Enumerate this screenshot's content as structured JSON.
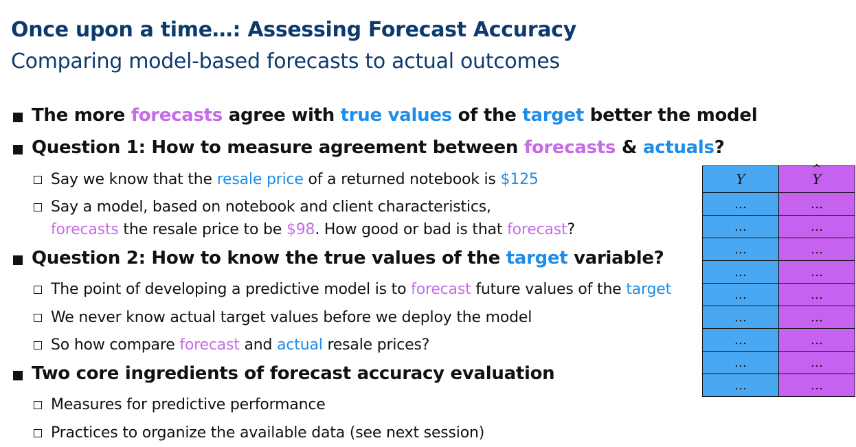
{
  "title": "Once upon a time…: Assessing Forecast Accuracy",
  "subtitle": "Comparing model-based forecasts to actual outcomes",
  "bullets": {
    "b1": {
      "p1": "The more ",
      "p2": "forecasts",
      "p3": " agree with ",
      "p4": "true values",
      "p5": " of the ",
      "p6": "target",
      "p7": " better the model"
    },
    "b2": {
      "p1": "Question 1: How to measure agreement between ",
      "p2": "forecasts",
      "p3": " & ",
      "p4": "actuals",
      "p5": "?"
    },
    "b2_1": {
      "p1": "Say we know that the ",
      "p2": "resale price",
      "p3": " of a returned notebook is ",
      "p4": "$125"
    },
    "b2_2": {
      "line1": "Say a model, based on notebook and client characteristics,",
      "p1": "forecasts",
      "p2": " the resale price to be ",
      "p3": "$98",
      "p4": ". How good or bad is that ",
      "p5": "forecast",
      "p6": "?"
    },
    "b3": {
      "p1": "Question 2: How to know the true values of the ",
      "p2": "target",
      "p3": " variable?"
    },
    "b3_1": {
      "p1": "The point of developing a predictive model is to ",
      "p2": "forecast",
      "p3": " future values of the ",
      "p4": "target"
    },
    "b3_2": {
      "p1": "We never know actual target values before we deploy the model"
    },
    "b3_3": {
      "p1": "So how compare ",
      "p2": "forecast",
      "p3": " and ",
      "p4": "actual",
      "p5": " resale prices?"
    },
    "b4": {
      "p1": "Two core ingredients of forecast accuracy evaluation"
    },
    "b4_1": {
      "p1": "Measures for predictive performance"
    },
    "b4_2": {
      "p1": "Practices to organize the available data (see next session)"
    }
  },
  "table": {
    "headers": [
      "Y",
      "Y"
    ],
    "rows": [
      [
        "…",
        "…"
      ],
      [
        "…",
        "…"
      ],
      [
        "…",
        "…"
      ],
      [
        "…",
        "…"
      ],
      [
        "…",
        "…"
      ],
      [
        "…",
        "…"
      ],
      [
        "…",
        "…"
      ],
      [
        "…",
        "…"
      ],
      [
        "…",
        "…"
      ]
    ]
  },
  "colors": {
    "title": "#0d3a6e",
    "purple": "#c76be8",
    "blue": "#1e8ce8",
    "table_y": "#4aa8f2",
    "table_yhat": "#c762f0"
  }
}
